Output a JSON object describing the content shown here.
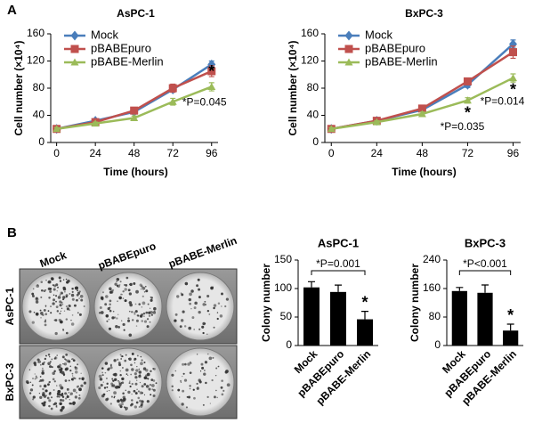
{
  "panels": [
    "A",
    "B"
  ],
  "plate_image": {
    "columns": [
      "Mock",
      "pBABEpuro",
      "pBABE-Merlin"
    ],
    "rows": [
      "AsPC-1",
      "BxPC-3"
    ]
  },
  "chart_data": [
    {
      "type": "line",
      "title": "AsPC-1",
      "x_label": "Time (hours)",
      "y_label": "Cell number (×10⁴)",
      "x": [
        0,
        24,
        48,
        72,
        96
      ],
      "xlim": [
        -2,
        100
      ],
      "xticks": [
        0,
        24,
        48,
        72,
        96
      ],
      "ylim": [
        0,
        160
      ],
      "yticks": [
        0,
        40,
        80,
        120,
        160
      ],
      "legend": "top-left",
      "series": [
        {
          "name": "Mock",
          "color": "#4a7ebb",
          "marker": "diamond",
          "values": [
            20,
            32,
            45,
            78,
            115
          ],
          "errors": [
            2,
            3,
            3,
            4,
            5
          ]
        },
        {
          "name": "pBABEpuro",
          "color": "#c0504d",
          "marker": "square",
          "values": [
            20,
            30,
            47,
            80,
            105
          ],
          "errors": [
            2,
            3,
            3,
            6,
            8
          ]
        },
        {
          "name": "pBABE-Merlin",
          "color": "#9bbb59",
          "marker": "triangle",
          "values": [
            20,
            28,
            36,
            60,
            82
          ],
          "errors": [
            2,
            2,
            3,
            5,
            6
          ]
        }
      ],
      "annotations": [
        "*",
        "*P=0.045"
      ]
    },
    {
      "type": "line",
      "title": "BxPC-3",
      "x_label": "Time (hours)",
      "y_label": "Cell number (×10⁴)",
      "x": [
        0,
        24,
        48,
        72,
        96
      ],
      "xlim": [
        -2,
        100
      ],
      "xticks": [
        0,
        24,
        48,
        72,
        96
      ],
      "ylim": [
        0,
        160
      ],
      "yticks": [
        0,
        40,
        80,
        120,
        160
      ],
      "legend": "top-left",
      "series": [
        {
          "name": "Mock",
          "color": "#4a7ebb",
          "marker": "diamond",
          "values": [
            20,
            32,
            48,
            85,
            145
          ],
          "errors": [
            2,
            3,
            3,
            4,
            6
          ]
        },
        {
          "name": "pBABEpuro",
          "color": "#c0504d",
          "marker": "square",
          "values": [
            20,
            32,
            50,
            90,
            133
          ],
          "errors": [
            2,
            3,
            3,
            5,
            9
          ]
        },
        {
          "name": "pBABE-Merlin",
          "color": "#9bbb59",
          "marker": "triangle",
          "values": [
            20,
            30,
            42,
            62,
            95
          ],
          "errors": [
            2,
            2,
            3,
            4,
            6
          ]
        }
      ],
      "annotations": [
        "*",
        "*P=0.035",
        "*",
        "*P=0.014"
      ]
    },
    {
      "type": "bar",
      "title": "AsPC-1",
      "y_label": "Colony number",
      "categories": [
        "Mock",
        "pBABEpuro",
        "pBABE-Merlin"
      ],
      "values": [
        102,
        94,
        46
      ],
      "errors": [
        10,
        12,
        14
      ],
      "color": "#000000",
      "ylim": [
        0,
        150
      ],
      "yticks": [
        0,
        50,
        100,
        150
      ],
      "annotations": [
        "*P=0.001",
        "*"
      ]
    },
    {
      "type": "bar",
      "title": "BxPC-3",
      "y_label": "Colony number",
      "categories": [
        "Mock",
        "pBABEpuro",
        "pBABE-Merlin"
      ],
      "values": [
        153,
        148,
        42
      ],
      "errors": [
        10,
        22,
        18
      ],
      "color": "#000000",
      "ylim": [
        0,
        240
      ],
      "yticks": [
        0,
        80,
        160,
        240
      ],
      "annotations": [
        "*P<0.001",
        "*"
      ]
    }
  ]
}
